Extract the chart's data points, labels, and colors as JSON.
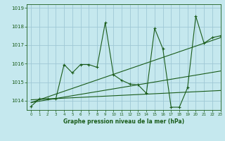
{
  "title": "Graphe pression niveau de la mer (hPa)",
  "bg_color": "#c5e8ee",
  "grid_color": "#9fc8d5",
  "line_color": "#1a5c1a",
  "xlim": [
    -0.5,
    23
  ],
  "ylim": [
    1013.5,
    1019.2
  ],
  "yticks": [
    1014,
    1015,
    1016,
    1017,
    1018,
    1019
  ],
  "xticks": [
    0,
    1,
    2,
    3,
    4,
    5,
    6,
    7,
    8,
    9,
    10,
    11,
    12,
    13,
    14,
    15,
    16,
    17,
    18,
    19,
    20,
    21,
    22,
    23
  ],
  "series1_x": [
    0,
    1,
    2,
    3,
    4,
    5,
    6,
    7,
    8,
    9,
    10,
    11,
    12,
    13,
    14,
    15,
    16,
    17,
    18,
    19,
    20,
    21,
    22,
    23
  ],
  "series1_y": [
    1013.7,
    1014.1,
    1014.1,
    1014.1,
    1015.95,
    1015.5,
    1015.95,
    1015.95,
    1015.8,
    1018.2,
    1015.4,
    1015.1,
    1014.9,
    1014.85,
    1014.4,
    1017.9,
    1016.8,
    1013.65,
    1013.65,
    1014.7,
    1018.55,
    1017.1,
    1017.4,
    1017.5
  ],
  "trend1_x": [
    0,
    23
  ],
  "trend1_y": [
    1013.9,
    1017.4
  ],
  "trend2_x": [
    0,
    23
  ],
  "trend2_y": [
    1013.9,
    1015.6
  ],
  "trend3_x": [
    0,
    23
  ],
  "trend3_y": [
    1014.05,
    1014.55
  ]
}
